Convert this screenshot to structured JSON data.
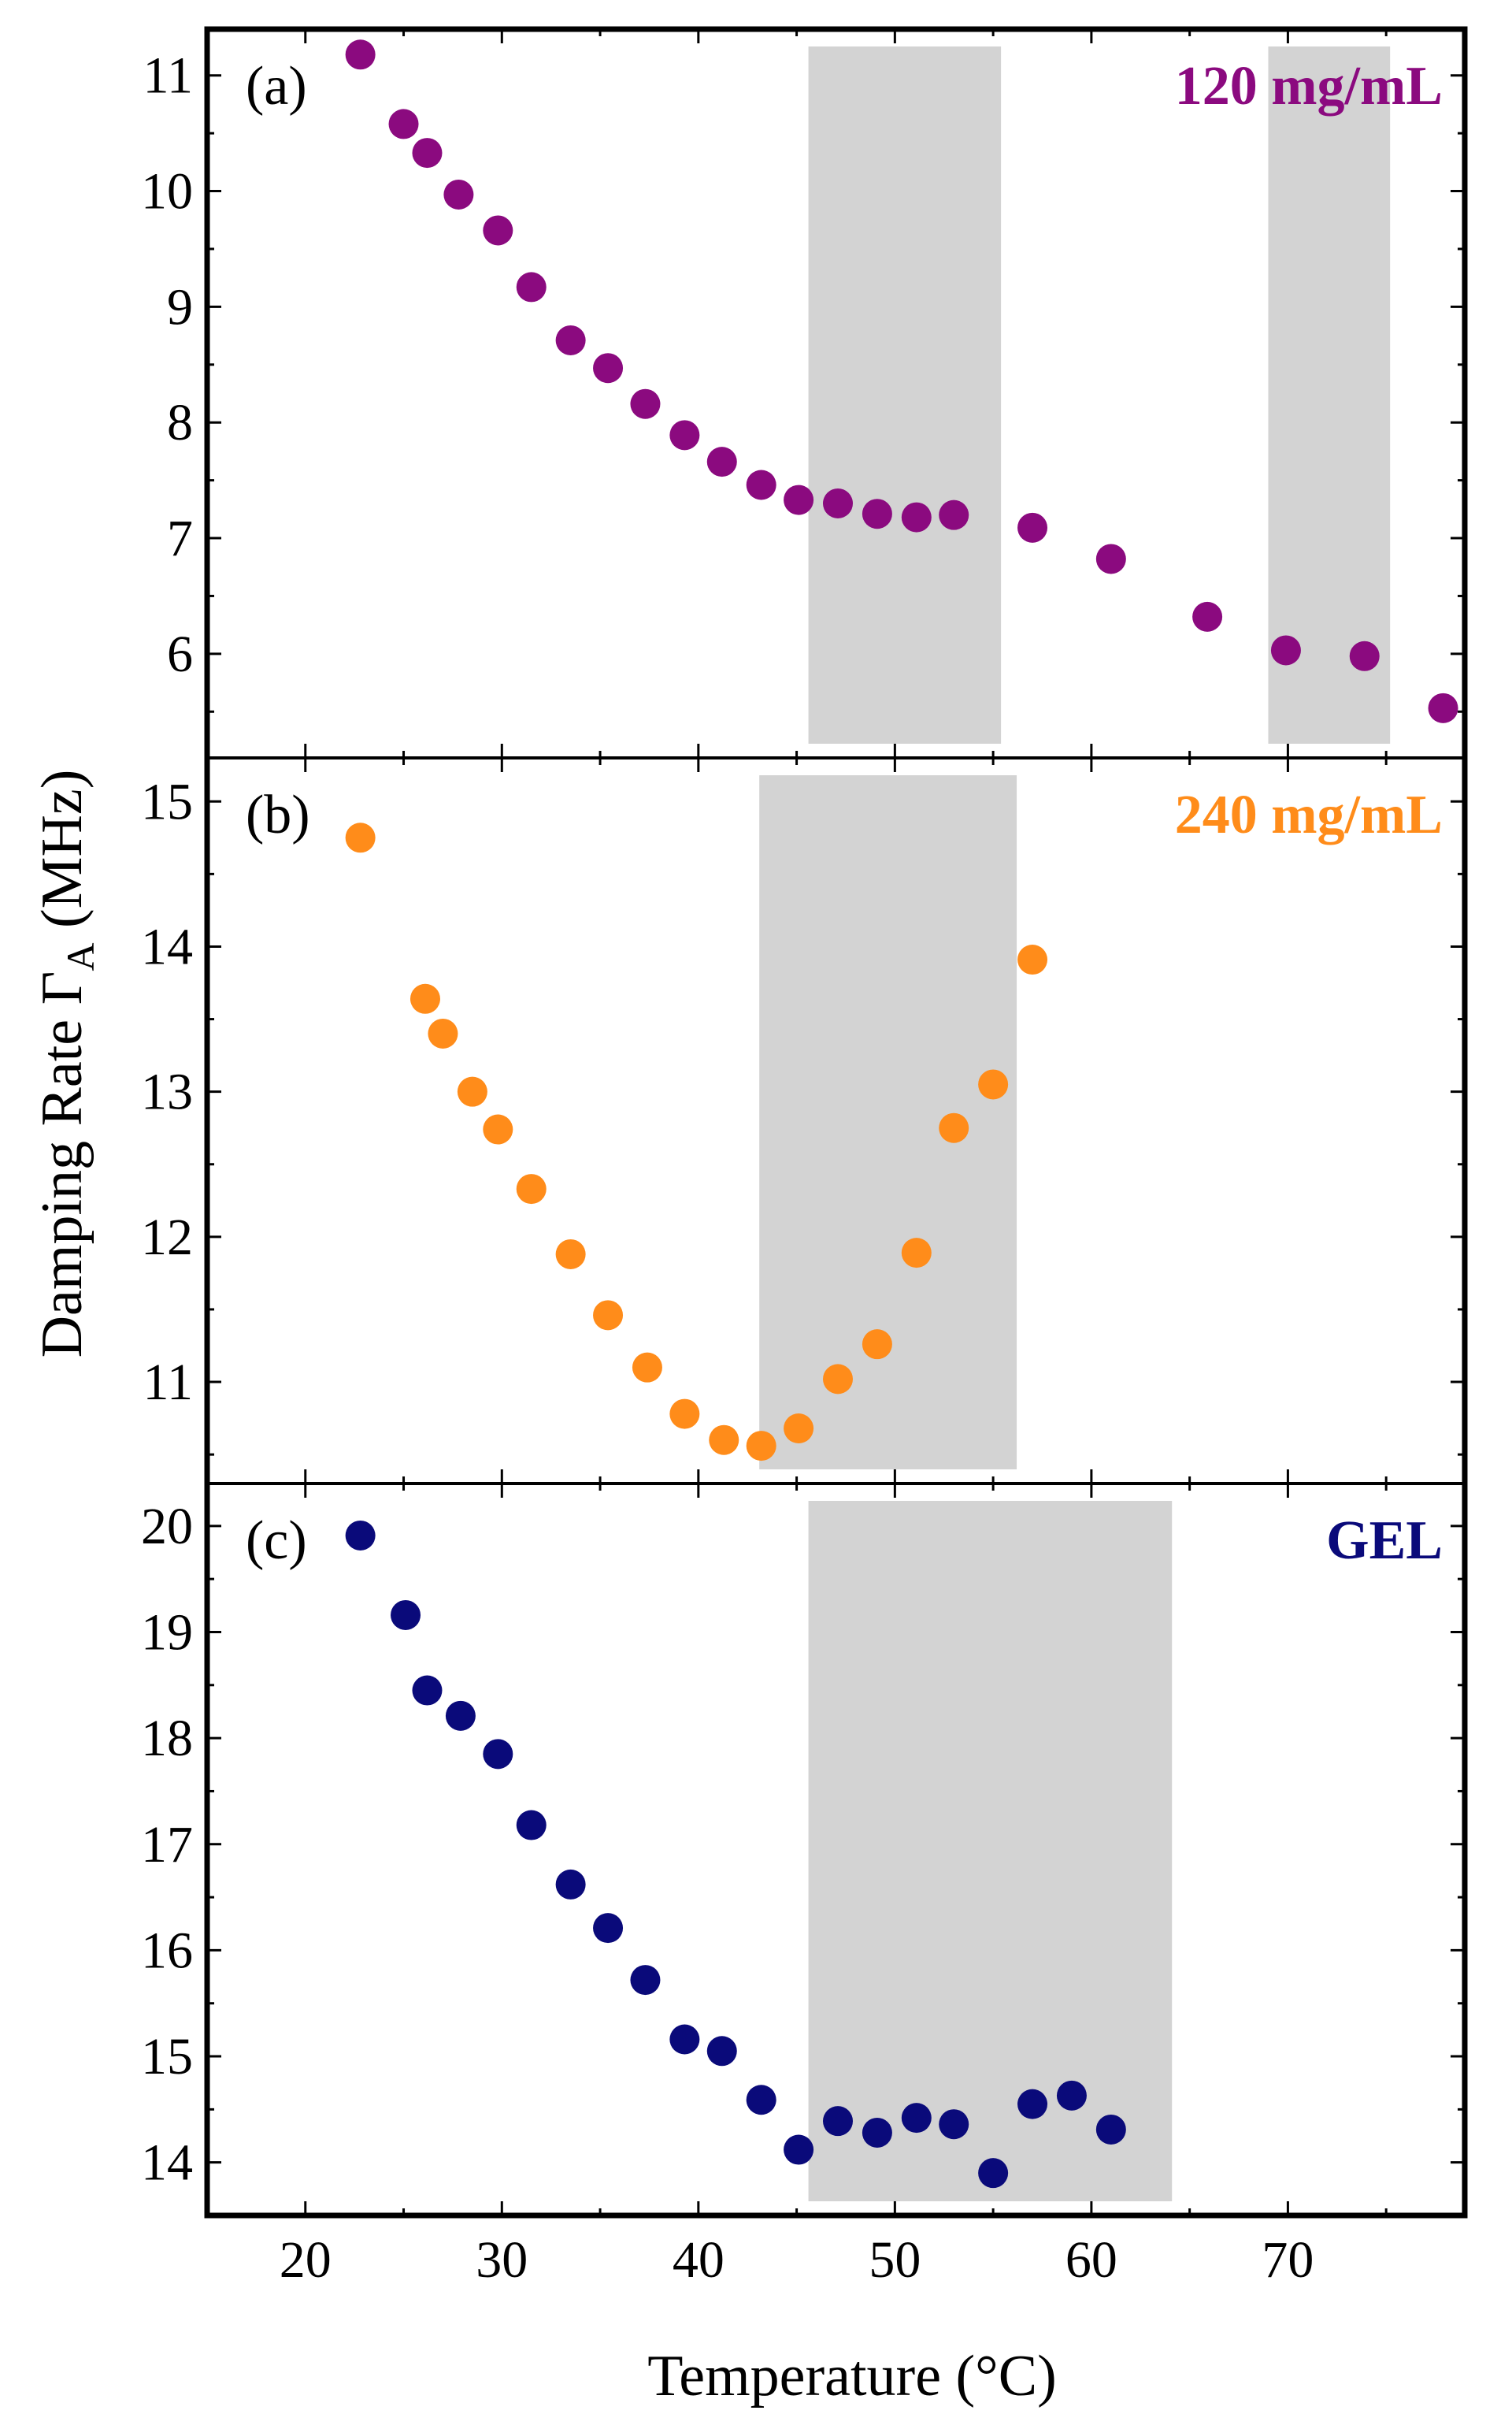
{
  "figure": {
    "xlabel": "Temperature (°C)",
    "ylabel": "Damping Rate   Γ",
    "ylabel_subscript": "A",
    "ylabel_unit": " (MHz)"
  },
  "chart_data": [
    {
      "type": "scatter",
      "panel": "(a)",
      "series_label": "120 mg/mL",
      "color": "#8b0a7f",
      "xlim": [
        15,
        79
      ],
      "ylim": [
        5.1,
        11.4
      ],
      "x_ticks": [
        20,
        30,
        40,
        50,
        60,
        70
      ],
      "y_ticks": [
        6,
        7,
        8,
        9,
        10,
        11
      ],
      "shaded_regions": [
        [
          45.6,
          55.4
        ],
        [
          69,
          75.2
        ]
      ],
      "shade_color": "#d3d3d3",
      "x": [
        22.8,
        25.0,
        26.2,
        27.8,
        29.8,
        31.5,
        33.5,
        35.4,
        37.3,
        39.3,
        41.2,
        43.2,
        45.1,
        47.1,
        49.1,
        51.1,
        53.0,
        57.0,
        61.0,
        65.9,
        69.9,
        73.9,
        77.9
      ],
      "y": [
        11.18,
        10.58,
        10.33,
        9.97,
        9.66,
        9.17,
        8.71,
        8.47,
        8.16,
        7.89,
        7.66,
        7.46,
        7.33,
        7.3,
        7.21,
        7.18,
        7.2,
        7.09,
        6.82,
        6.32,
        6.03,
        5.98,
        5.53
      ]
    },
    {
      "type": "scatter",
      "panel": "(b)",
      "series_label": "240 mg/mL",
      "color": "#ff8c1a",
      "xlim": [
        15,
        79
      ],
      "ylim": [
        10.3,
        15.3
      ],
      "x_ticks": [
        20,
        30,
        40,
        50,
        60,
        70
      ],
      "y_ticks": [
        11,
        12,
        13,
        14,
        15
      ],
      "shaded_regions": [
        [
          43.1,
          56.2
        ]
      ],
      "shade_color": "#d3d3d3",
      "x": [
        22.8,
        26.1,
        27.0,
        28.5,
        29.8,
        31.5,
        33.5,
        35.4,
        37.4,
        39.3,
        41.3,
        43.2,
        45.1,
        47.1,
        49.1,
        51.1,
        53.0,
        55.0,
        57.0
      ],
      "y": [
        14.75,
        13.64,
        13.4,
        13.0,
        12.74,
        12.33,
        11.88,
        11.46,
        11.1,
        10.78,
        10.6,
        10.56,
        10.68,
        11.02,
        11.26,
        11.89,
        12.75,
        13.05,
        13.91
      ]
    },
    {
      "type": "scatter",
      "panel": "(c)",
      "series_label": "GEL",
      "color": "#0a0a7a",
      "xlim": [
        15,
        79
      ],
      "ylim": [
        13.5,
        20.4
      ],
      "x_ticks": [
        20,
        30,
        40,
        50,
        60,
        70
      ],
      "y_ticks": [
        14,
        15,
        16,
        17,
        18,
        19,
        20
      ],
      "shaded_regions": [
        [
          45.6,
          64.1
        ]
      ],
      "shade_color": "#d3d3d3",
      "x": [
        22.8,
        25.1,
        26.2,
        27.9,
        29.8,
        31.5,
        33.5,
        35.4,
        37.3,
        39.3,
        41.2,
        43.2,
        45.1,
        47.1,
        49.1,
        51.1,
        53.0,
        55.0,
        57.0,
        59.0,
        61.0
      ],
      "y": [
        19.91,
        19.16,
        18.45,
        18.21,
        17.85,
        17.18,
        16.62,
        16.21,
        15.72,
        15.16,
        15.05,
        14.59,
        14.12,
        14.39,
        14.28,
        14.42,
        14.36,
        13.9,
        14.55,
        14.63,
        14.31
      ]
    }
  ]
}
